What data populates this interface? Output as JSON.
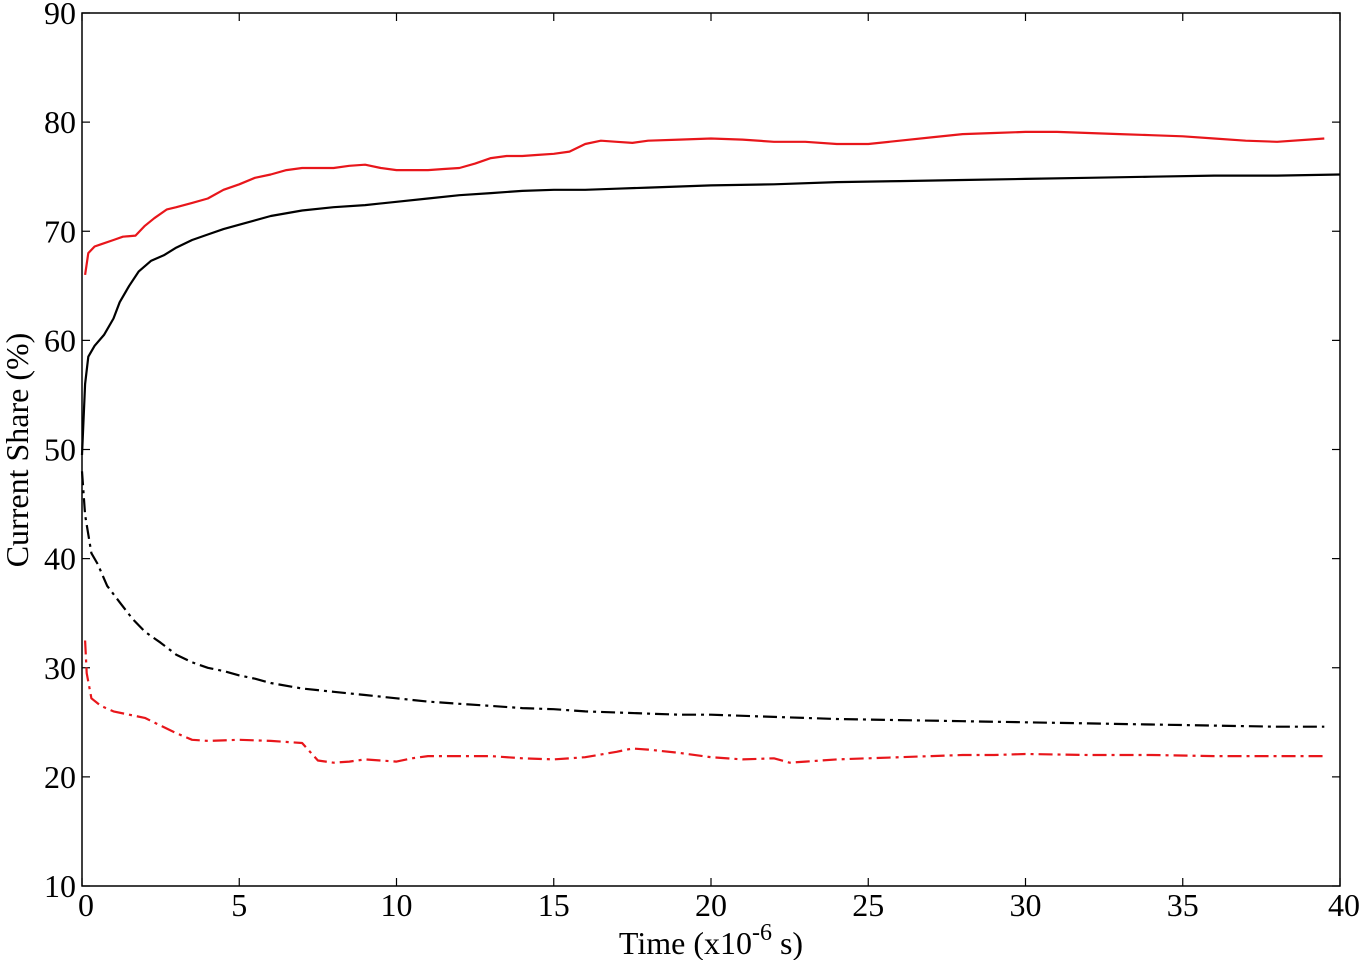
{
  "chart_data": {
    "type": "line",
    "xlabel": "Time (x10",
    "xlabel_exponent": "-6",
    "xlabel_suffix": " s)",
    "ylabel": "Current Share (%)",
    "xlim": [
      0,
      40
    ],
    "ylim": [
      10,
      90
    ],
    "xticks": [
      0,
      5,
      10,
      15,
      20,
      25,
      30,
      35,
      40
    ],
    "yticks": [
      10,
      20,
      30,
      40,
      50,
      60,
      70,
      80,
      90
    ],
    "grid": false,
    "legend": "none",
    "series": [
      {
        "color": "#e8161b",
        "dash": "solid",
        "x": [
          0.1,
          0.2,
          0.4,
          0.6,
          1.0,
          1.3,
          1.7,
          2.0,
          2.3,
          2.7,
          3.0,
          3.5,
          4.0,
          4.5,
          5.0,
          5.5,
          6.0,
          6.5,
          7.0,
          7.5,
          8.0,
          8.5,
          9.0,
          9.5,
          10.0,
          10.5,
          11.0,
          11.5,
          12.0,
          12.5,
          13.0,
          13.5,
          14.0,
          14.5,
          15.0,
          15.5,
          16.0,
          16.5,
          17.0,
          17.5,
          18.0,
          19.0,
          20.0,
          21.0,
          22.0,
          23.0,
          24.0,
          25.0,
          26.0,
          27.0,
          28.0,
          29.0,
          30.0,
          31.0,
          32.0,
          33.0,
          34.0,
          35.0,
          36.0,
          37.0,
          38.0,
          39.0,
          39.5
        ],
        "y": [
          66.0,
          68.0,
          68.6,
          68.8,
          69.2,
          69.5,
          69.6,
          70.5,
          71.2,
          72.0,
          72.2,
          72.6,
          73.0,
          73.8,
          74.3,
          74.9,
          75.2,
          75.6,
          75.8,
          75.8,
          75.8,
          76.0,
          76.1,
          75.8,
          75.6,
          75.6,
          75.6,
          75.7,
          75.8,
          76.2,
          76.7,
          76.9,
          76.9,
          77.0,
          77.1,
          77.3,
          78.0,
          78.3,
          78.2,
          78.1,
          78.3,
          78.4,
          78.5,
          78.4,
          78.2,
          78.2,
          78.0,
          78.0,
          78.3,
          78.6,
          78.9,
          79.0,
          79.1,
          79.1,
          79.0,
          78.9,
          78.8,
          78.7,
          78.5,
          78.3,
          78.2,
          78.4,
          78.5
        ]
      },
      {
        "color": "#000000",
        "dash": "solid",
        "x": [
          0.0,
          0.1,
          0.2,
          0.4,
          0.7,
          1.0,
          1.2,
          1.5,
          1.8,
          2.2,
          2.6,
          3.0,
          3.5,
          4.0,
          4.5,
          5.0,
          6.0,
          7.0,
          8.0,
          9.0,
          10.0,
          11.0,
          12.0,
          13.0,
          14.0,
          15.0,
          16.0,
          17.0,
          18.0,
          19.0,
          20.0,
          22.0,
          24.0,
          26.0,
          28.0,
          30.0,
          32.0,
          34.0,
          36.0,
          38.0,
          40.0
        ],
        "y": [
          49.5,
          56.0,
          58.5,
          59.5,
          60.5,
          62.0,
          63.5,
          65.0,
          66.3,
          67.3,
          67.8,
          68.5,
          69.2,
          69.7,
          70.2,
          70.6,
          71.4,
          71.9,
          72.2,
          72.4,
          72.7,
          73.0,
          73.3,
          73.5,
          73.7,
          73.8,
          73.8,
          73.9,
          74.0,
          74.1,
          74.2,
          74.3,
          74.5,
          74.6,
          74.7,
          74.8,
          74.9,
          75.0,
          75.1,
          75.1,
          75.2
        ]
      },
      {
        "color": "#000000",
        "dash": "dashdot",
        "x": [
          0.0,
          0.1,
          0.3,
          0.5,
          0.8,
          1.2,
          1.6,
          2.0,
          2.5,
          3.0,
          3.5,
          4.0,
          4.5,
          5.0,
          5.5,
          6.0,
          7.0,
          8.0,
          9.0,
          10.0,
          11.0,
          12.0,
          13.0,
          14.0,
          15.0,
          16.0,
          17.0,
          18.0,
          19.0,
          20.0,
          22.0,
          24.0,
          26.0,
          28.0,
          30.0,
          32.0,
          34.0,
          36.0,
          38.0,
          39.5
        ],
        "y": [
          48.0,
          44.0,
          40.5,
          39.5,
          37.5,
          36.0,
          34.5,
          33.3,
          32.3,
          31.2,
          30.5,
          30.0,
          29.7,
          29.3,
          29.0,
          28.6,
          28.1,
          27.8,
          27.5,
          27.2,
          26.9,
          26.7,
          26.5,
          26.3,
          26.2,
          26.0,
          25.9,
          25.8,
          25.7,
          25.7,
          25.5,
          25.3,
          25.2,
          25.1,
          25.0,
          24.9,
          24.8,
          24.7,
          24.6,
          24.6
        ]
      },
      {
        "color": "#e8161b",
        "dash": "dashdot",
        "x": [
          0.1,
          0.15,
          0.3,
          0.6,
          1.0,
          1.5,
          2.0,
          2.5,
          3.0,
          3.5,
          4.0,
          5.0,
          6.0,
          7.0,
          7.5,
          8.0,
          8.5,
          9.0,
          10.0,
          10.5,
          11.0,
          12.0,
          13.0,
          14.0,
          15.0,
          16.0,
          17.0,
          17.5,
          18.0,
          19.0,
          20.0,
          21.0,
          22.0,
          22.5,
          23.0,
          24.0,
          25.0,
          26.0,
          27.0,
          28.0,
          29.0,
          30.0,
          32.0,
          34.0,
          36.0,
          38.0,
          39.5
        ],
        "y": [
          32.5,
          29.5,
          27.2,
          26.5,
          26.0,
          25.7,
          25.4,
          24.7,
          24.0,
          23.4,
          23.3,
          23.4,
          23.3,
          23.1,
          21.5,
          21.3,
          21.4,
          21.6,
          21.4,
          21.7,
          21.9,
          21.9,
          21.9,
          21.7,
          21.6,
          21.8,
          22.3,
          22.6,
          22.5,
          22.2,
          21.8,
          21.6,
          21.7,
          21.3,
          21.4,
          21.6,
          21.7,
          21.8,
          21.9,
          22.0,
          22.0,
          22.1,
          22.0,
          22.0,
          21.9,
          21.9,
          21.9
        ]
      }
    ]
  }
}
